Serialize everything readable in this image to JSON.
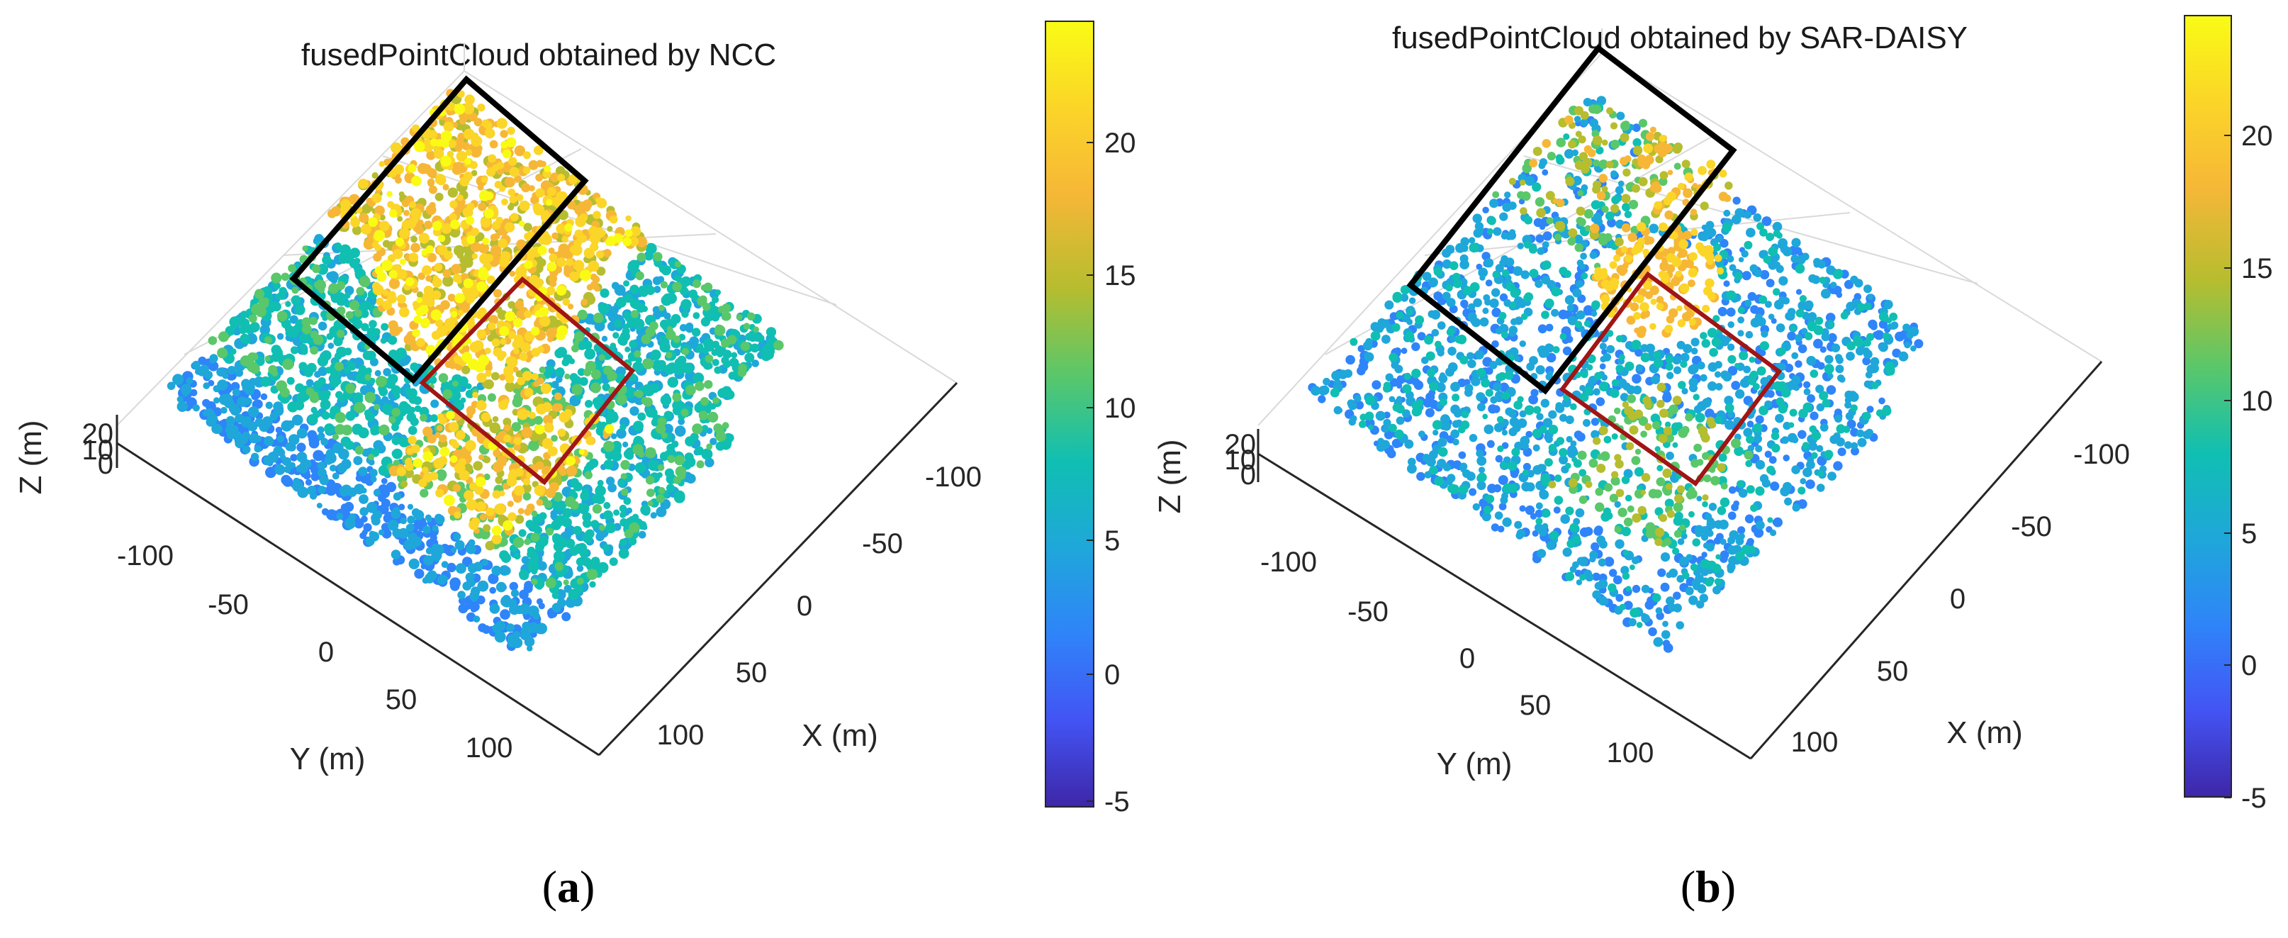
{
  "chart_data": [
    {
      "type": "scatter",
      "title": "fusedPointCloud obtained by NCC",
      "caption_letter": "a",
      "xlabel": "X (m)",
      "ylabel": "Y (m)",
      "zlabel": "Z (m)",
      "x_ticks": [
        "-100",
        "-50",
        "0",
        "50",
        "100"
      ],
      "y_ticks": [
        "-100",
        "-50",
        "0",
        "50",
        "100"
      ],
      "z_ticks": [
        "20",
        "10",
        "0"
      ],
      "colorbar_ticks": [
        "-5",
        "0",
        "5",
        "10",
        "15",
        "20"
      ],
      "color_range": [
        -5,
        25
      ],
      "xlim": [
        -130,
        130
      ],
      "ylim": [
        -130,
        130
      ]
    },
    {
      "type": "scatter",
      "title": "fusedPointCloud obtained by SAR-DAISY",
      "caption_letter": "b",
      "xlabel": "X (m)",
      "ylabel": "Y (m)",
      "zlabel": "Z (m)",
      "x_ticks": [
        "-100",
        "-50",
        "0",
        "50",
        "100"
      ],
      "y_ticks": [
        "-100",
        "-50",
        "0",
        "50",
        "100"
      ],
      "z_ticks": [
        "20",
        "10",
        "0"
      ],
      "colorbar_ticks": [
        "-5",
        "0",
        "5",
        "10",
        "15",
        "20"
      ],
      "color_range": [
        -5,
        25
      ],
      "xlim": [
        -130,
        130
      ],
      "ylim": [
        -130,
        130
      ]
    }
  ],
  "colors": {
    "colormap": [
      "#3e26a8",
      "#4354f4",
      "#2f84f9",
      "#1fa7da",
      "#10bfb2",
      "#5ac76a",
      "#b6bd2f",
      "#f6b737",
      "#fbd528",
      "#f9fb15"
    ],
    "black_box": "#000000",
    "red_box": "#a01515"
  }
}
